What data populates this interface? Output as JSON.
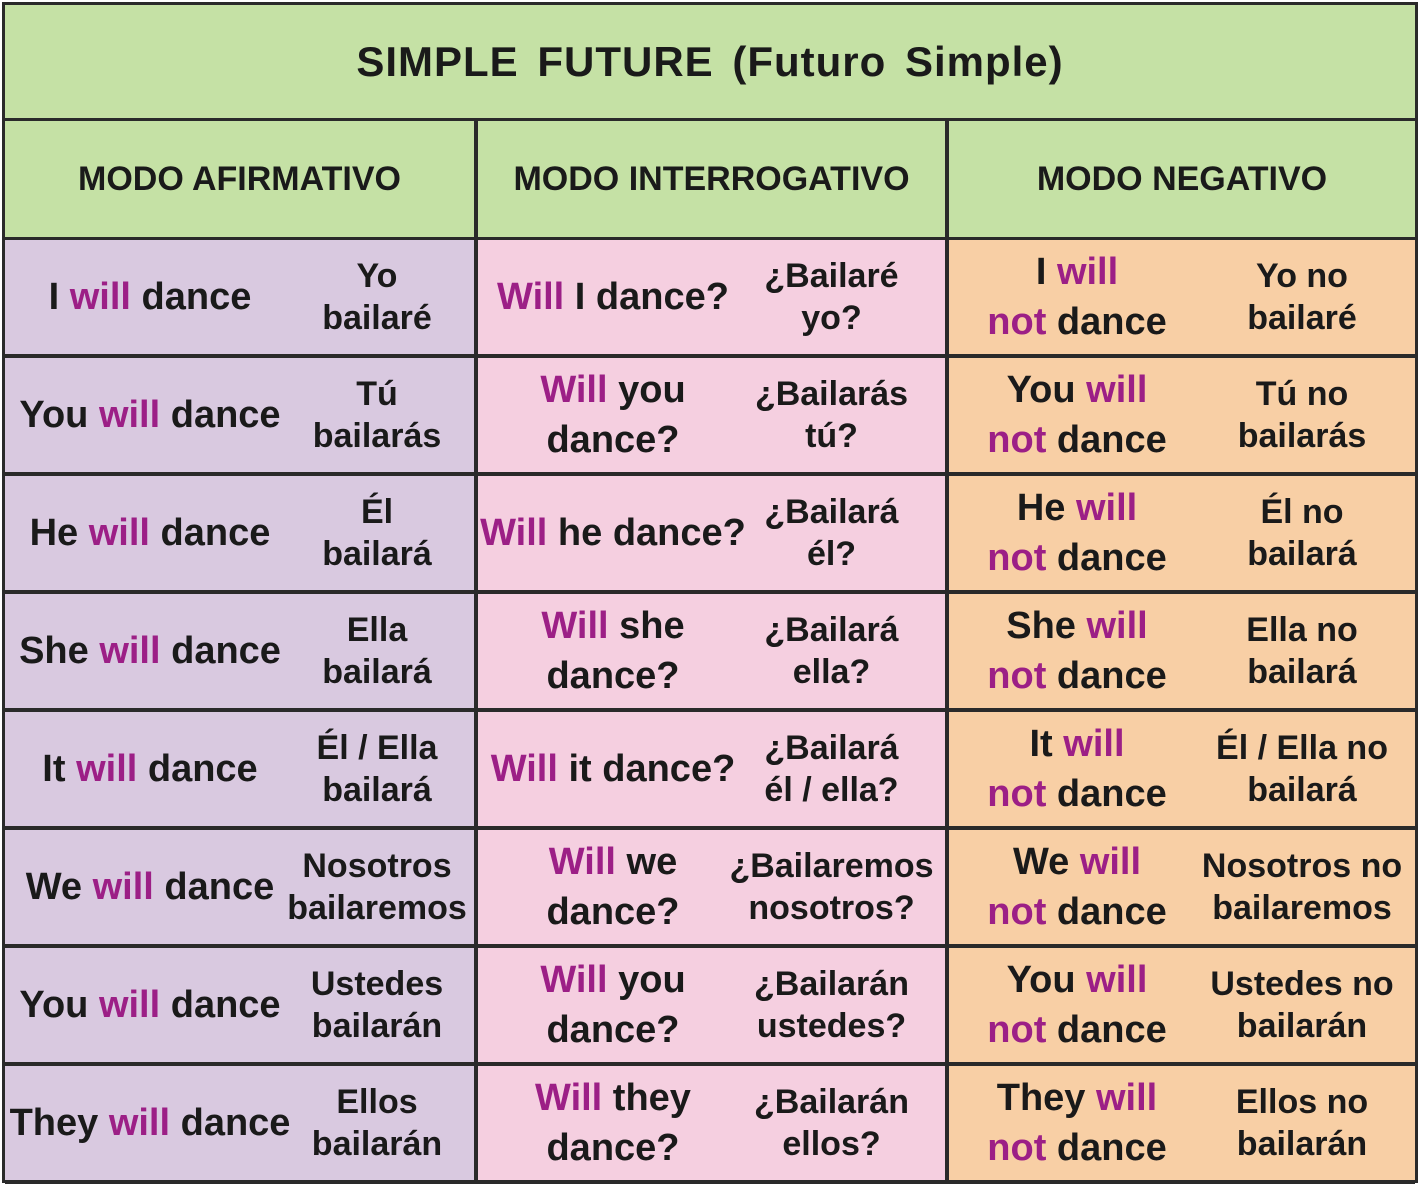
{
  "title": "SIMPLE  FUTURE (Futuro Simple)",
  "headers": [
    "MODO AFIRMATIVO",
    "MODO INTERROGATIVO",
    "MODO NEGATIVO"
  ],
  "accent_color": "#9c1f86",
  "rows": [
    {
      "aff": {
        "pre": "I ",
        "kw": "will",
        "post": " dance",
        "es": "Yo bailaré"
      },
      "int": {
        "kw": "Will",
        "post": " I dance?",
        "es": "¿Bailaré yo?"
      },
      "neg": {
        "pre": "I ",
        "kw1": "will",
        "kw2": "not",
        "post": " dance",
        "es": "Yo no bailaré"
      }
    },
    {
      "aff": {
        "pre": "You ",
        "kw": "will",
        "post": " dance",
        "es": "Tú bailarás"
      },
      "int": {
        "kw": "Will",
        "post": " you dance?",
        "es": "¿Bailarás tú?"
      },
      "neg": {
        "pre": "You ",
        "kw1": "will",
        "kw2": "not",
        "post": " dance",
        "es": "Tú no bailarás"
      }
    },
    {
      "aff": {
        "pre": "He ",
        "kw": "will",
        "post": " dance",
        "es": "Él bailará"
      },
      "int": {
        "kw": "Will",
        "post": " he dance?",
        "es": "¿Bailará él?"
      },
      "neg": {
        "pre": "He ",
        "kw1": "will",
        "kw2": "not",
        "post": " dance",
        "es": "Él no bailará"
      }
    },
    {
      "aff": {
        "pre": "She ",
        "kw": "will",
        "post": " dance",
        "es": "Ella bailará"
      },
      "int": {
        "kw": "Will",
        "post": " she dance?",
        "es": "¿Bailará ella?"
      },
      "neg": {
        "pre": "She ",
        "kw1": "will",
        "kw2": "not",
        "post": " dance",
        "es": "Ella no bailará"
      }
    },
    {
      "aff": {
        "pre": "It ",
        "kw": "will",
        "post": " dance",
        "es": "Él / Ella bailará"
      },
      "int": {
        "kw": "Will",
        "post": " it dance?",
        "es": "¿Bailará él / ella?"
      },
      "neg": {
        "pre": "It ",
        "kw1": "will",
        "kw2": "not",
        "post": " dance",
        "es": "Él / Ella no bailará"
      }
    },
    {
      "aff": {
        "pre": "We ",
        "kw": "will",
        "post": " dance",
        "es": "Nosotros bailaremos"
      },
      "int": {
        "kw": "Will",
        "post": " we dance?",
        "es": "¿Bailaremos nosotros?"
      },
      "neg": {
        "pre": "We ",
        "kw1": "will",
        "kw2": "not",
        "post": " dance",
        "es": "Nosotros no bailaremos"
      }
    },
    {
      "aff": {
        "pre": "You ",
        "kw": "will",
        "post": " dance",
        "es": "Ustedes bailarán"
      },
      "int": {
        "kw": "Will",
        "post": " you dance?",
        "es": "¿Bailarán ustedes?"
      },
      "neg": {
        "pre": "You ",
        "kw1": "will",
        "kw2": "not",
        "post": " dance",
        "es": "Ustedes no bailarán"
      }
    },
    {
      "aff": {
        "pre": "They ",
        "kw": "will",
        "post": " dance",
        "es": "Ellos bailarán"
      },
      "int": {
        "kw": "Will",
        "post": " they dance?",
        "es": "¿Bailarán ellos?"
      },
      "neg": {
        "pre": "They ",
        "kw1": "will",
        "kw2": "not",
        "post": " dance",
        "es": "Ellos no bailarán"
      }
    }
  ]
}
